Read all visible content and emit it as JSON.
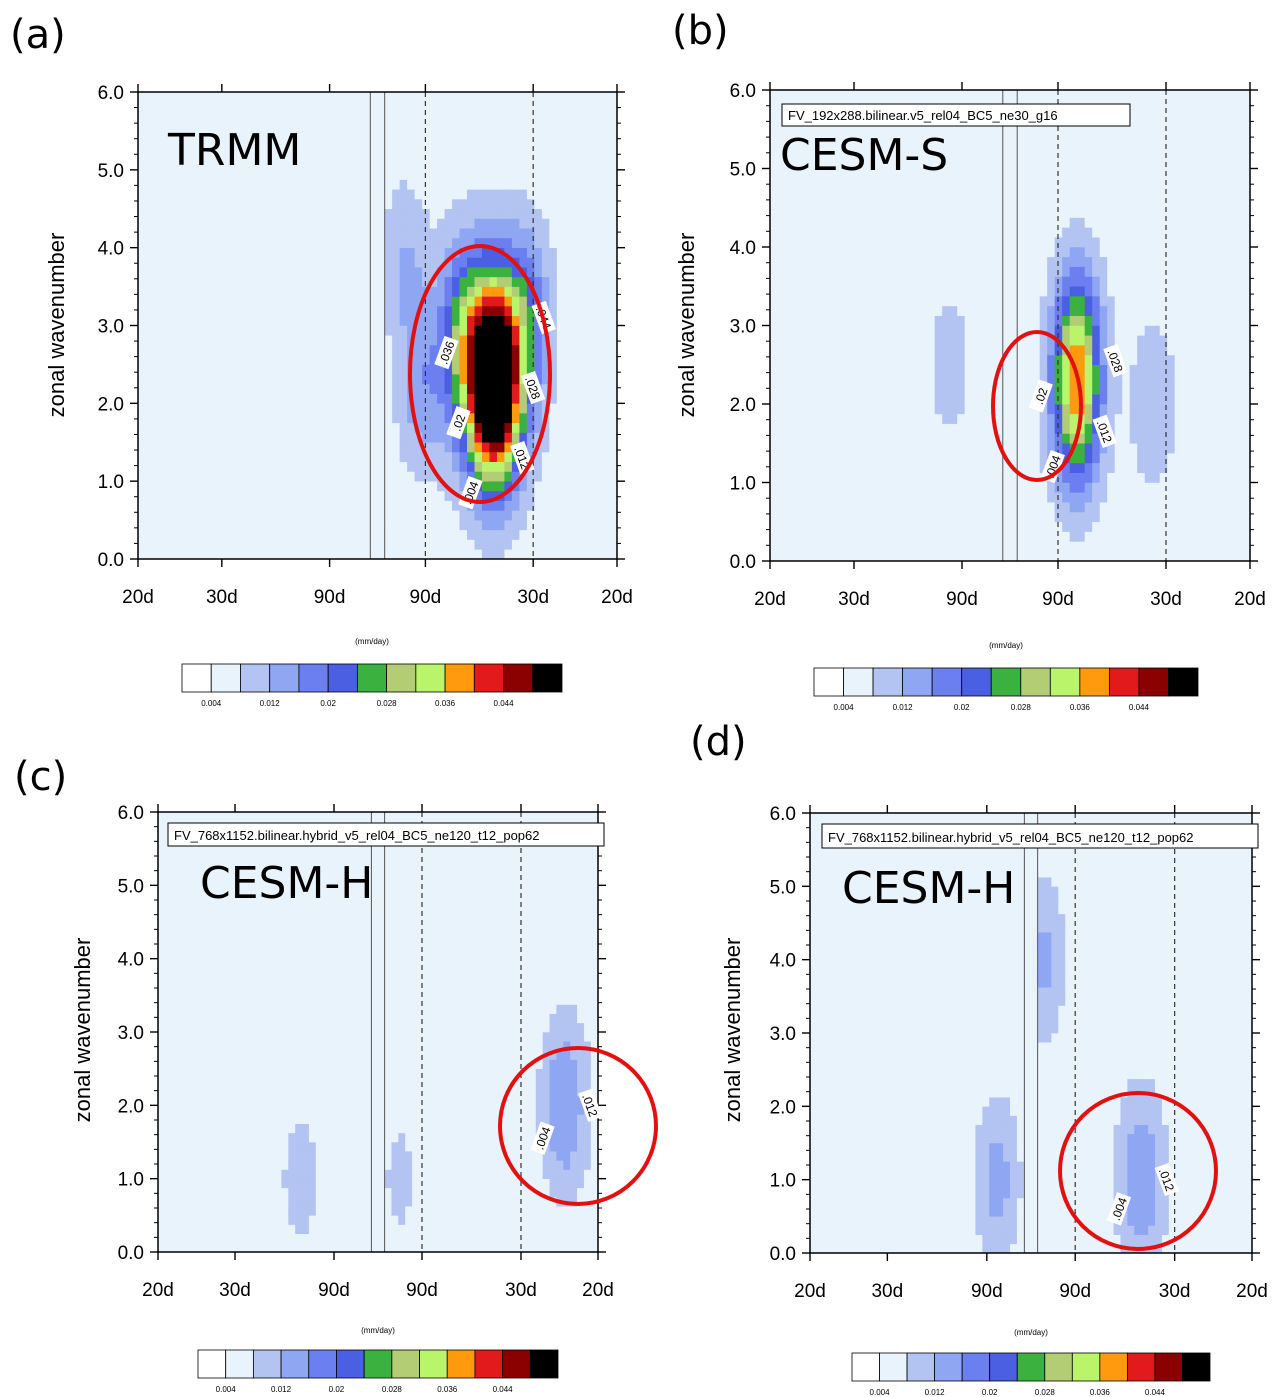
{
  "colors": {
    "levels": [
      "#ffffff",
      "#e8f3fb",
      "#b3c3f2",
      "#8fa6f3",
      "#6b7ff0",
      "#4b5fe3",
      "#3bb23f",
      "#b3cd74",
      "#b9f46b",
      "#ff9a0e",
      "#e31a1c",
      "#8b0000",
      "#000000"
    ],
    "circle": "#e31010"
  },
  "common": {
    "ylabel": "zonal wavenumber",
    "unit": "(mm/day)",
    "x_ticks": [
      "20d",
      "30d",
      "90d",
      "90d",
      "30d",
      "20d"
    ],
    "y_ticks": [
      "0.0",
      "1.0",
      "2.0",
      "3.0",
      "4.0",
      "5.0",
      "6.0"
    ],
    "colorbar_ticks": [
      "0.004",
      "0.012",
      "0.02",
      "0.028",
      "0.036",
      "0.044"
    ]
  },
  "chart_data": [
    {
      "panel": "(a)",
      "type": "heatmap",
      "title": "TRMM",
      "config_label": "",
      "ylabel": "zonal wavenumber",
      "ylim": [
        0,
        6
      ],
      "levels": [
        0.004,
        0.008,
        0.012,
        0.016,
        0.02,
        0.024,
        0.028,
        0.032,
        0.036,
        0.04,
        0.044,
        0.048
      ],
      "features": [
        {
          "kind": "peak",
          "x": 0.49,
          "y": 2.2,
          "value": 0.046
        },
        {
          "kind": "spread",
          "x": 0.47,
          "y": 2.5,
          "value": 0.03
        },
        {
          "kind": "band",
          "x": 0.63,
          "y": 3.2,
          "value": 0.016
        },
        {
          "kind": "band",
          "x": 0.35,
          "y": 3.0,
          "value": 0.016
        },
        {
          "kind": "band",
          "x": 0.18,
          "y": 2.2,
          "value": 0.014
        },
        {
          "kind": "band",
          "x": 0.12,
          "y": 3.8,
          "value": 0.012
        }
      ],
      "contour_labels": [
        ".004",
        ".012",
        ".02",
        ".028",
        ".036",
        ".044"
      ],
      "highlight": {
        "x": 0.42,
        "y": 2.3
      }
    },
    {
      "panel": "(b)",
      "type": "heatmap",
      "title": "CESM-S",
      "config_label": "FV_192x288.bilinear.v5_rel04_BC5_ne30_g16",
      "ylabel": "zonal wavenumber",
      "ylim": [
        0,
        6
      ],
      "levels": [
        0.004,
        0.008,
        0.012,
        0.016,
        0.02,
        0.024,
        0.028,
        0.032,
        0.036,
        0.04,
        0.044,
        0.048
      ],
      "features": [
        {
          "kind": "peak",
          "x": 0.28,
          "y": 2.1,
          "value": 0.034
        },
        {
          "kind": "band",
          "x": 0.28,
          "y": 3.0,
          "value": 0.016
        },
        {
          "kind": "band",
          "x": 0.6,
          "y": 2.0,
          "value": 0.012
        },
        {
          "kind": "band",
          "x": -0.25,
          "y": 2.5,
          "value": 0.01
        }
      ],
      "contour_labels": [
        ".004",
        ".012",
        ".02",
        ".028"
      ],
      "highlight": {
        "x": 0.27,
        "y": 2.0
      }
    },
    {
      "panel": "(c)",
      "type": "heatmap",
      "title": "CESM-H",
      "config_label": "FV_768x1152.bilinear.hybrid_v5_rel04_BC5_ne120_t12_pop62",
      "ylabel": "zonal wavenumber",
      "ylim": [
        0,
        6
      ],
      "levels": [
        0.004,
        0.008,
        0.012,
        0.016,
        0.02,
        0.024,
        0.028,
        0.032,
        0.036,
        0.04,
        0.044,
        0.048
      ],
      "features": [
        {
          "kind": "peak",
          "x": 0.85,
          "y": 2.0,
          "value": 0.016
        },
        {
          "kind": "band",
          "x": -0.35,
          "y": 1.0,
          "value": 0.01
        },
        {
          "kind": "band",
          "x": 0.1,
          "y": 1.0,
          "value": 0.009
        }
      ],
      "contour_labels": [
        ".004",
        ".012"
      ],
      "highlight": {
        "x": 0.88,
        "y": 1.7
      }
    },
    {
      "panel": "(d)",
      "type": "heatmap",
      "title": "CESM-H",
      "config_label": "FV_768x1152.bilinear.hybrid_v5_rel04_BC5_ne120_t12_pop62",
      "ylabel": "zonal wavenumber",
      "ylim": [
        0,
        6
      ],
      "levels": [
        0.004,
        0.008,
        0.012,
        0.016,
        0.02,
        0.024,
        0.028,
        0.032,
        0.036,
        0.04,
        0.044,
        0.048
      ],
      "features": [
        {
          "kind": "peak",
          "x": 0.5,
          "y": 1.0,
          "value": 0.016
        },
        {
          "kind": "band",
          "x": -0.15,
          "y": 1.0,
          "value": 0.014
        },
        {
          "kind": "band",
          "x": 0.06,
          "y": 4.0,
          "value": 0.013
        }
      ],
      "contour_labels": [
        ".004",
        ".012"
      ],
      "highlight": {
        "x": 0.5,
        "y": 1.15
      }
    }
  ]
}
